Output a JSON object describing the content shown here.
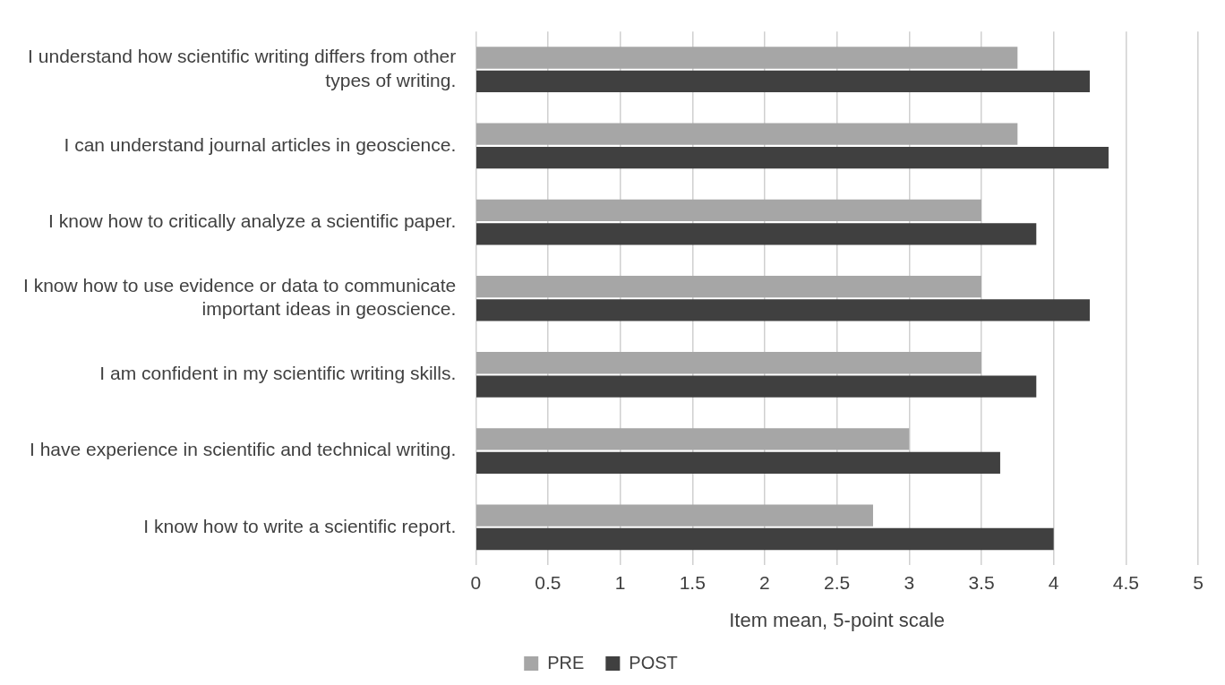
{
  "chart_data": {
    "type": "bar",
    "orientation": "horizontal",
    "categories": [
      "I understand how scientific writing differs from other types of writing.",
      "I can understand journal articles in geoscience.",
      "I know how to critically analyze a scientific paper.",
      "I know how to use evidence or data to communicate important ideas in geoscience.",
      "I am confident in my scientific writing skills.",
      "I have experience in scientific and technical writing.",
      "I know how to write a scientific report."
    ],
    "series": [
      {
        "name": "PRE",
        "color": "#a6a6a6",
        "values": [
          3.75,
          3.75,
          3.5,
          3.5,
          3.5,
          3.0,
          2.75
        ]
      },
      {
        "name": "POST",
        "color": "#404040",
        "values": [
          4.25,
          4.38,
          3.88,
          4.25,
          3.88,
          3.63,
          4.0
        ]
      }
    ],
    "x_label": "Item mean, 5-point scale",
    "xlim": [
      0,
      5
    ],
    "xticks": [
      0,
      0.5,
      1,
      1.5,
      2,
      2.5,
      3,
      3.5,
      4,
      4.5,
      5
    ],
    "grid": true,
    "legend": "bottom"
  }
}
